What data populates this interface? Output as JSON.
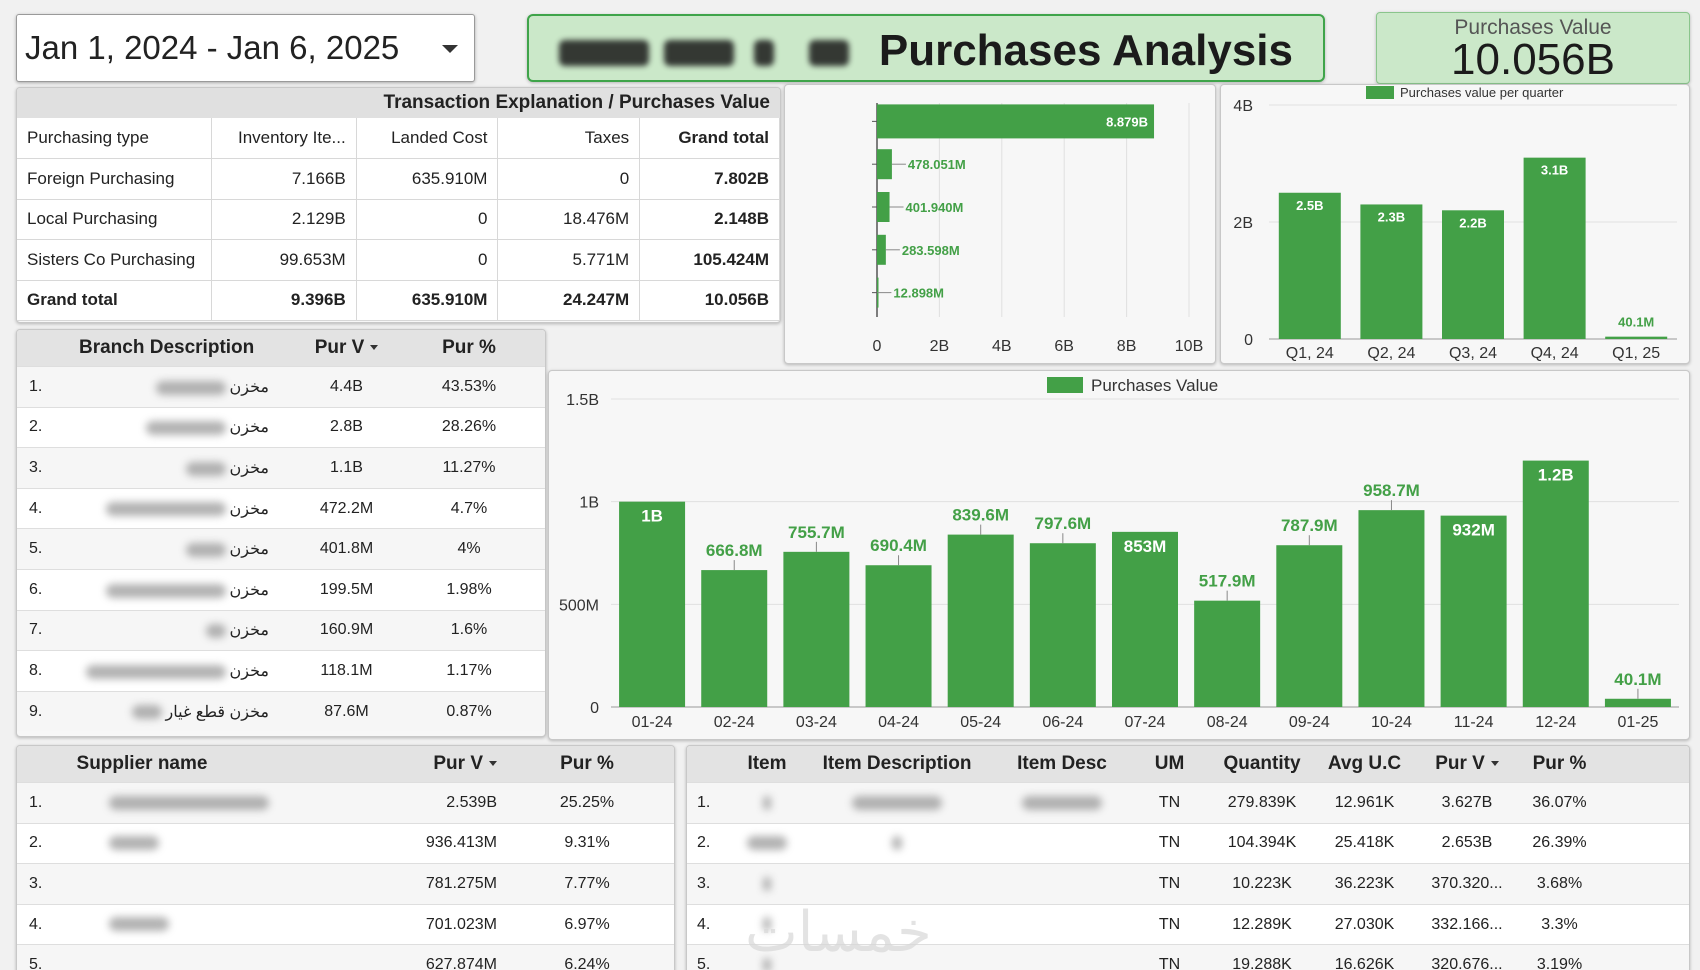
{
  "date_range": {
    "label": "Jan 1, 2024 - Jan 6, 2025"
  },
  "header": {
    "title": "Purchases Analysis"
  },
  "kpi": {
    "label": "Purchases Value",
    "value": "10.056B"
  },
  "transaction_table": {
    "title": "Transaction Explanation / Purchases Value",
    "columns": [
      "Purchasing type",
      "Inventory Ite...",
      "Landed Cost",
      "Taxes",
      "Grand total"
    ],
    "rows": [
      [
        "Foreign Purchasing",
        "7.166B",
        "635.910M",
        "0",
        "7.802B"
      ],
      [
        "Local Purchasing",
        "2.129B",
        "0",
        "18.476M",
        "2.148B"
      ],
      [
        "Sisters Co Purchasing",
        "99.653M",
        "0",
        "5.771M",
        "105.424M"
      ]
    ],
    "total_row": [
      "Grand total",
      "9.396B",
      "635.910M",
      "24.247M",
      "10.056B"
    ]
  },
  "branch_table": {
    "columns": [
      "Branch Description",
      "Pur V",
      "Pur %"
    ],
    "rows": [
      {
        "n": "1.",
        "name": "مخزن",
        "v": "4.4B",
        "p": "43.53%"
      },
      {
        "n": "2.",
        "name": "مخزن",
        "v": "2.8B",
        "p": "28.26%"
      },
      {
        "n": "3.",
        "name": "مخزن",
        "v": "1.1B",
        "p": "11.27%"
      },
      {
        "n": "4.",
        "name": "مخزن",
        "v": "472.2M",
        "p": "4.7%"
      },
      {
        "n": "5.",
        "name": "مخزن",
        "v": "401.8M",
        "p": "4%"
      },
      {
        "n": "6.",
        "name": "مخزن",
        "v": "199.5M",
        "p": "1.98%"
      },
      {
        "n": "7.",
        "name": "مخزن",
        "v": "160.9M",
        "p": "1.6%"
      },
      {
        "n": "8.",
        "name": "مخزن",
        "v": "118.1M",
        "p": "1.17%"
      },
      {
        "n": "9.",
        "name": "مخزن قطع غيار",
        "v": "87.6M",
        "p": "0.87%"
      }
    ]
  },
  "supplier_table": {
    "columns": [
      "Supplier name",
      "Pur V",
      "Pur %"
    ],
    "rows": [
      {
        "n": "1.",
        "v": "2.539B",
        "p": "25.25%"
      },
      {
        "n": "2.",
        "v": "936.413M",
        "p": "9.31%"
      },
      {
        "n": "3.",
        "v": "781.275M",
        "p": "7.77%"
      },
      {
        "n": "4.",
        "v": "701.023M",
        "p": "6.97%"
      },
      {
        "n": "5.",
        "v": "627.874M",
        "p": "6.24%"
      }
    ]
  },
  "item_table": {
    "columns": [
      "Item",
      "Item Description",
      "Item Desc",
      "UM",
      "Quantity",
      "Avg U.C",
      "Pur V",
      "Pur %"
    ],
    "rows": [
      {
        "n": "1.",
        "um": "TN",
        "qty": "279.839K",
        "uc": "12.961K",
        "v": "3.627B",
        "p": "36.07%"
      },
      {
        "n": "2.",
        "um": "TN",
        "qty": "104.394K",
        "uc": "25.418K",
        "v": "2.653B",
        "p": "26.39%"
      },
      {
        "n": "3.",
        "um": "TN",
        "qty": "10.223K",
        "uc": "36.223K",
        "v": "370.320...",
        "p": "3.68%"
      },
      {
        "n": "4.",
        "um": "TN",
        "qty": "12.289K",
        "uc": "27.030K",
        "v": "332.166...",
        "p": "3.3%"
      },
      {
        "n": "5.",
        "um": "TN",
        "qty": "19.288K",
        "uc": "16.626K",
        "v": "320.676...",
        "p": "3.19%"
      }
    ]
  },
  "colors": {
    "bar": "#43a047",
    "title_bg": "#cbe8c9",
    "title_border": "#3fa44a"
  },
  "watermark": "خمسات",
  "chart_data": [
    {
      "type": "bar",
      "orientation": "horizontal",
      "values": [
        8.879,
        0.478051,
        0.40194,
        0.283598,
        0.012898
      ],
      "value_labels": [
        "8.879B",
        "478.051M",
        "401.940M",
        "283.598M",
        "12.898M"
      ],
      "xticks": [
        "0",
        "2B",
        "4B",
        "6B",
        "8B",
        "10B"
      ],
      "xlim": [
        0,
        10
      ]
    },
    {
      "type": "bar",
      "legend": "Purchases value per quarter",
      "categories": [
        "Q1, 24",
        "Q2, 24",
        "Q3, 24",
        "Q4, 24",
        "Q1, 25"
      ],
      "values": [
        2.5,
        2.3,
        2.2,
        3.1,
        0.0401
      ],
      "value_labels": [
        "2.5B",
        "2.3B",
        "2.2B",
        "3.1B",
        "40.1M"
      ],
      "yticks": [
        "0",
        "2B",
        "4B"
      ],
      "ylim": [
        0,
        4
      ]
    },
    {
      "type": "bar",
      "legend": "Purchases Value",
      "categories": [
        "01-24",
        "02-24",
        "03-24",
        "04-24",
        "05-24",
        "06-24",
        "07-24",
        "08-24",
        "09-24",
        "10-24",
        "11-24",
        "12-24",
        "01-25"
      ],
      "values": [
        1.0,
        0.6668,
        0.7557,
        0.6904,
        0.8396,
        0.7976,
        0.853,
        0.5179,
        0.7879,
        0.9587,
        0.932,
        1.2,
        0.0401
      ],
      "value_labels": [
        "1B",
        "666.8M",
        "755.7M",
        "690.4M",
        "839.6M",
        "797.6M",
        "853M",
        "517.9M",
        "787.9M",
        "958.7M",
        "932M",
        "1.2B",
        "40.1M"
      ],
      "yticks": [
        "0",
        "500M",
        "1B",
        "1.5B"
      ],
      "ylim": [
        0,
        1.5
      ]
    }
  ]
}
